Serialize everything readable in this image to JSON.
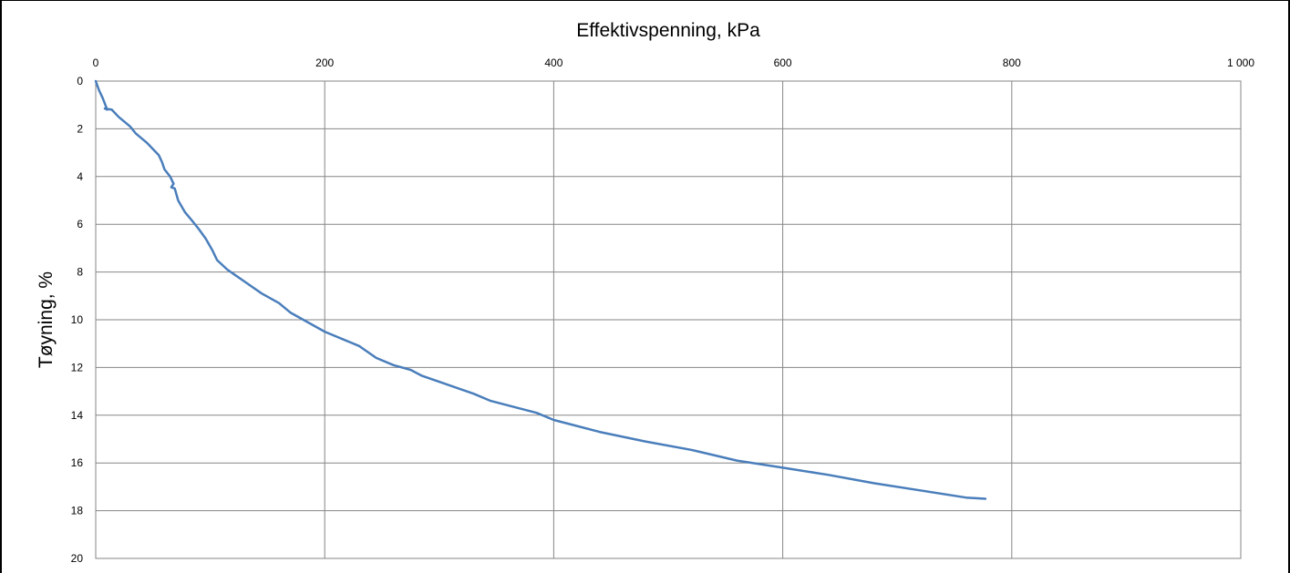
{
  "chart_data": {
    "type": "line",
    "title": "",
    "xlabel": "Effektivspenning, kPa",
    "ylabel": "Tøyning, %",
    "xlim": [
      0,
      1000
    ],
    "ylim": [
      0,
      20
    ],
    "y_inverted": true,
    "x_axis_position": "top",
    "grid": true,
    "legend": "none",
    "x_ticks": [
      0,
      200,
      400,
      600,
      800,
      1000
    ],
    "x_tick_labels": [
      "0",
      "200",
      "400",
      "600",
      "800",
      "1 000"
    ],
    "y_ticks": [
      0,
      2,
      4,
      6,
      8,
      10,
      12,
      14,
      16,
      18,
      20
    ],
    "y_tick_labels": [
      "0",
      "2",
      "4",
      "6",
      "8",
      "10",
      "12",
      "14",
      "16",
      "18",
      "20"
    ],
    "series": [
      {
        "color": "#4a7ebb",
        "points": [
          [
            0,
            0
          ],
          [
            3,
            0.4
          ],
          [
            6,
            0.7
          ],
          [
            10,
            1.2
          ],
          [
            8,
            1.15
          ],
          [
            14,
            1.2
          ],
          [
            20,
            1.5
          ],
          [
            30,
            1.9
          ],
          [
            35,
            2.2
          ],
          [
            45,
            2.6
          ],
          [
            55,
            3.1
          ],
          [
            58,
            3.4
          ],
          [
            60,
            3.7
          ],
          [
            65,
            4.0
          ],
          [
            68,
            4.3
          ],
          [
            66,
            4.45
          ],
          [
            69,
            4.5
          ],
          [
            72,
            5.0
          ],
          [
            78,
            5.5
          ],
          [
            85,
            5.9
          ],
          [
            90,
            6.2
          ],
          [
            96,
            6.6
          ],
          [
            102,
            7.1
          ],
          [
            106,
            7.5
          ],
          [
            115,
            7.9
          ],
          [
            130,
            8.4
          ],
          [
            145,
            8.9
          ],
          [
            160,
            9.3
          ],
          [
            170,
            9.7
          ],
          [
            185,
            10.1
          ],
          [
            200,
            10.5
          ],
          [
            230,
            11.1
          ],
          [
            245,
            11.6
          ],
          [
            260,
            11.9
          ],
          [
            275,
            12.1
          ],
          [
            285,
            12.35
          ],
          [
            300,
            12.6
          ],
          [
            330,
            13.1
          ],
          [
            345,
            13.4
          ],
          [
            385,
            13.9
          ],
          [
            400,
            14.2
          ],
          [
            440,
            14.7
          ],
          [
            480,
            15.1
          ],
          [
            520,
            15.45
          ],
          [
            560,
            15.9
          ],
          [
            600,
            16.2
          ],
          [
            640,
            16.5
          ],
          [
            680,
            16.85
          ],
          [
            720,
            17.15
          ],
          [
            760,
            17.45
          ],
          [
            777,
            17.5
          ]
        ]
      }
    ]
  }
}
